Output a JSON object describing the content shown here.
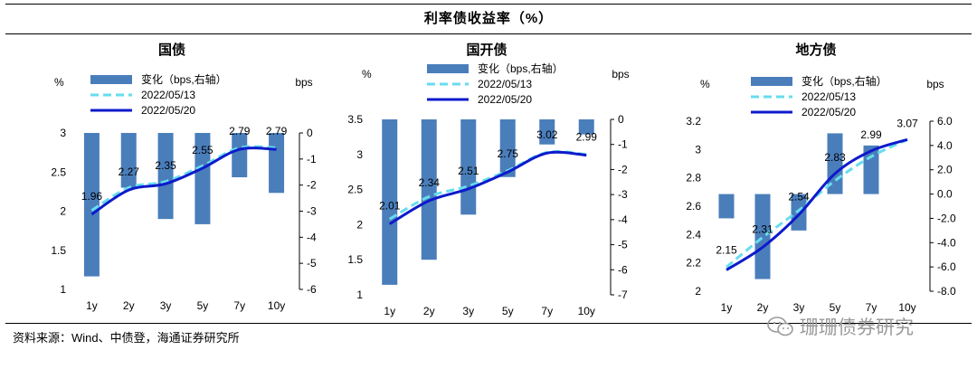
{
  "header": {
    "title": "利率债收益率（%）"
  },
  "source": {
    "text": "资料来源：Wind、中债登，海通证券研究所"
  },
  "watermark": {
    "text": "珊珊债券研究"
  },
  "colors": {
    "bar": "#4a7ebb",
    "line_prev": "#66ddee",
    "line_curr": "#0d1acb"
  },
  "chart_data": [
    {
      "type": "bar+line",
      "title": "国债",
      "left_unit": "%",
      "right_unit": "bps",
      "categories": [
        "1y",
        "2y",
        "3y",
        "5y",
        "7y",
        "10y"
      ],
      "legend": [
        "变化（bps,右轴）",
        "2022/05/13",
        "2022/05/20"
      ],
      "ylim_left": [
        1,
        3
      ],
      "yticks_left": [
        1,
        1.5,
        2,
        2.5,
        3
      ],
      "yticklabels_left": [
        "1",
        "1.5",
        "2",
        "2.5",
        "3"
      ],
      "ylim_right": [
        -6,
        0
      ],
      "yticks_right": [
        0,
        -1,
        -2,
        -3,
        -4,
        -5,
        -6
      ],
      "yticklabels_right": [
        "0",
        "-1",
        "-2",
        "-3",
        "-4",
        "-5",
        "-6"
      ],
      "bars": [
        -5.5,
        -2.1,
        -3.3,
        -3.5,
        -1.7,
        -2.3
      ],
      "series": [
        {
          "name": "2022/05/13",
          "values": [
            2.01,
            2.3,
            2.38,
            2.58,
            2.81,
            2.81
          ]
        },
        {
          "name": "2022/05/20",
          "values": [
            1.96,
            2.27,
            2.35,
            2.55,
            2.79,
            2.79
          ]
        }
      ],
      "data_labels": [
        "1.96",
        "2.27",
        "2.35",
        "2.55",
        "2.79",
        "2.79"
      ]
    },
    {
      "type": "bar+line",
      "title": "国开债",
      "left_unit": "%",
      "right_unit": "bps",
      "categories": [
        "1y",
        "2y",
        "3y",
        "5y",
        "7y",
        "10y"
      ],
      "legend": [
        "变化（bps,右轴）",
        "2022/05/13",
        "2022/05/20"
      ],
      "ylim_left": [
        1,
        3.5
      ],
      "yticks_left": [
        1,
        1.5,
        2,
        2.5,
        3,
        3.5
      ],
      "yticklabels_left": [
        "1",
        "1.5",
        "2",
        "2.5",
        "3",
        "3.5"
      ],
      "ylim_right": [
        -7,
        0
      ],
      "yticks_right": [
        0,
        -1,
        -2,
        -3,
        -4,
        -5,
        -6,
        -7
      ],
      "yticklabels_right": [
        "0",
        "-1",
        "-2",
        "-3",
        "-4",
        "-5",
        "-6",
        "-7"
      ],
      "bars": [
        -6.6,
        -5.6,
        -3.8,
        -2.3,
        -1.0,
        -0.6
      ],
      "series": [
        {
          "name": "2022/05/13",
          "values": [
            2.08,
            2.4,
            2.55,
            2.77,
            3.03,
            3.0
          ]
        },
        {
          "name": "2022/05/20",
          "values": [
            2.01,
            2.34,
            2.51,
            2.75,
            3.02,
            2.99
          ]
        }
      ],
      "data_labels": [
        "2.01",
        "2.34",
        "2.51",
        "2.75",
        "3.02",
        "2.99"
      ]
    },
    {
      "type": "bar+line",
      "title": "地方债",
      "left_unit": "%",
      "right_unit": "bps",
      "categories": [
        "1y",
        "2y",
        "3y",
        "5y",
        "7y",
        "10y"
      ],
      "legend": [
        "变化（bps,右轴）",
        "2022/05/13",
        "2022/05/20"
      ],
      "ylim_left": [
        2,
        3.2
      ],
      "yticks_left": [
        2,
        2.2,
        2.4,
        2.6,
        2.8,
        3,
        3.2
      ],
      "yticklabels_left": [
        "2",
        "2.2",
        "2.4",
        "2.6",
        "2.8",
        "3",
        "3.2"
      ],
      "ylim_right": [
        -8,
        6
      ],
      "yticks_right": [
        6,
        4,
        2,
        0,
        -2,
        -4,
        -6,
        -8
      ],
      "yticklabels_right": [
        "6.0",
        "4.0",
        "2.0",
        "0.0",
        "-2.0",
        "-4.0",
        "-6.0",
        "-8.0"
      ],
      "bars": [
        -2.0,
        -7.0,
        -3.0,
        5.0,
        4.0,
        0.0
      ],
      "series": [
        {
          "name": "2022/05/13",
          "values": [
            2.17,
            2.38,
            2.57,
            2.78,
            2.95,
            3.07
          ]
        },
        {
          "name": "2022/05/20",
          "values": [
            2.15,
            2.31,
            2.54,
            2.83,
            2.99,
            3.07
          ]
        }
      ],
      "data_labels": [
        "2.15",
        "2.31",
        "2.54",
        "2.83",
        "2.99",
        "3.07"
      ]
    }
  ]
}
